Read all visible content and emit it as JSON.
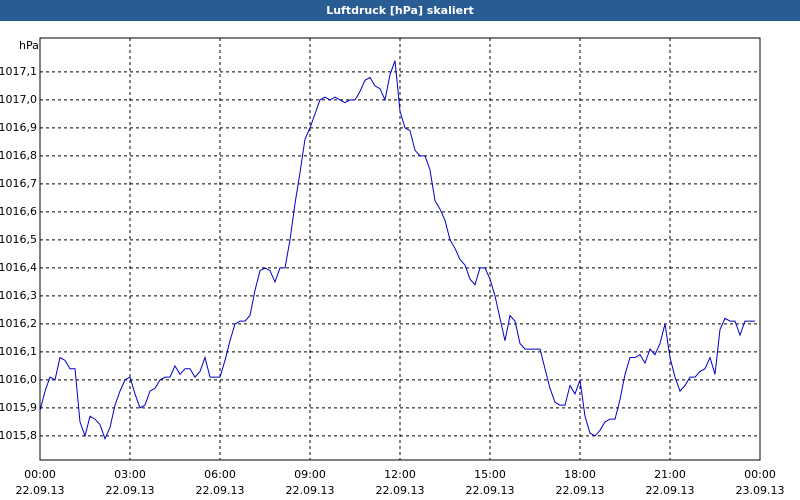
{
  "chart_data": {
    "type": "line",
    "title": "Luftdruck [hPa] skaliert",
    "y_label": "hPa",
    "x": [
      0,
      10,
      20,
      30,
      40,
      50,
      60,
      70,
      80,
      90,
      100,
      110,
      120,
      130,
      140,
      150,
      160,
      170,
      180,
      190,
      200,
      210,
      220,
      230,
      240,
      250,
      260,
      270,
      280,
      290,
      300,
      310,
      320,
      330,
      340,
      350,
      360,
      370,
      380,
      390,
      400,
      410,
      420,
      430,
      440,
      450,
      460,
      470,
      480,
      490,
      500,
      510,
      520,
      530,
      540,
      550,
      560,
      570,
      580,
      590,
      600,
      610,
      620,
      630,
      640,
      650,
      660,
      670,
      680,
      690,
      700,
      710,
      720,
      730,
      740,
      750,
      760,
      770,
      780,
      790,
      800,
      810,
      820,
      830,
      840,
      850,
      860,
      870,
      880,
      890,
      900,
      910,
      920,
      930,
      940,
      950,
      960,
      970,
      980,
      990,
      1000,
      1010,
      1020,
      1030,
      1040,
      1050,
      1060,
      1070,
      1080,
      1090,
      1100,
      1110,
      1120,
      1130,
      1140,
      1150,
      1160,
      1170,
      1180,
      1190,
      1200,
      1210,
      1220,
      1230,
      1240,
      1250,
      1260,
      1270,
      1280,
      1290,
      1300,
      1310,
      1320,
      1330,
      1340,
      1350,
      1360,
      1370,
      1380,
      1390,
      1400,
      1410,
      1420,
      1430
    ],
    "series": [
      {
        "name": "Luftdruck",
        "color": "#0000c8",
        "values": [
          1015.89,
          1015.96,
          1016.01,
          1016.0,
          1016.08,
          1016.07,
          1016.04,
          1016.04,
          1015.85,
          1015.8,
          1015.87,
          1015.86,
          1015.84,
          1015.79,
          1015.83,
          1015.91,
          1015.96,
          1016.0,
          1016.01,
          1015.95,
          1015.9,
          1015.91,
          1015.96,
          1015.97,
          1016.0,
          1016.01,
          1016.01,
          1016.05,
          1016.02,
          1016.04,
          1016.04,
          1016.01,
          1016.03,
          1016.08,
          1016.01,
          1016.01,
          1016.01,
          1016.07,
          1016.14,
          1016.2,
          1016.21,
          1016.21,
          1016.23,
          1016.32,
          1016.39,
          1016.4,
          1016.39,
          1016.35,
          1016.4,
          1016.4,
          1016.5,
          1016.63,
          1016.74,
          1016.86,
          1016.9,
          1016.95,
          1017.0,
          1017.01,
          1017.0,
          1017.01,
          1017.0,
          1016.99,
          1017.0,
          1017.0,
          1017.03,
          1017.07,
          1017.08,
          1017.05,
          1017.04,
          1017.0,
          1017.09,
          1017.14,
          1016.96,
          1016.9,
          1016.89,
          1016.82,
          1016.8,
          1016.8,
          1016.75,
          1016.64,
          1016.61,
          1016.57,
          1016.5,
          1016.47,
          1016.43,
          1016.41,
          1016.36,
          1016.34,
          1016.4,
          1016.4,
          1016.36,
          1016.3,
          1016.22,
          1016.14,
          1016.23,
          1016.21,
          1016.13,
          1016.11,
          1016.11,
          1016.11,
          1016.11,
          1016.04,
          1015.97,
          1015.92,
          1015.91,
          1015.91,
          1015.98,
          1015.95,
          1016.0,
          1015.87,
          1015.81,
          1015.8,
          1015.82,
          1015.85,
          1015.86,
          1015.86,
          1015.93,
          1016.02,
          1016.08,
          1016.08,
          1016.09,
          1016.06,
          1016.11,
          1016.09,
          1016.13,
          1016.2,
          1016.08,
          1016.01,
          1015.96,
          1015.98,
          1016.01,
          1016.01,
          1016.03,
          1016.04,
          1016.08,
          1016.02,
          1016.18,
          1016.22,
          1016.21,
          1016.21,
          1016.16,
          1016.21,
          1016.21,
          1016.21
        ]
      }
    ],
    "xlim": [
      0,
      1440
    ],
    "xticks": [
      {
        "value": 0,
        "label": "00:00"
      },
      {
        "value": 180,
        "label": "03:00"
      },
      {
        "value": 360,
        "label": "06:00"
      },
      {
        "value": 540,
        "label": "09:00"
      },
      {
        "value": 720,
        "label": "12:00"
      },
      {
        "value": 900,
        "label": "15:00"
      },
      {
        "value": 1080,
        "label": "18:00"
      },
      {
        "value": 1260,
        "label": "21:00"
      },
      {
        "value": 1440,
        "label": "00:00"
      }
    ],
    "xtick_dates": [
      "22.09.13",
      "22.09.13",
      "22.09.13",
      "22.09.13",
      "22.09.13",
      "22.09.13",
      "22.09.13",
      "22.09.13",
      "23.09.13"
    ],
    "ylim": [
      1015.714,
      1017.221
    ],
    "yticks": [
      {
        "value": 1015.8,
        "label": "1015,8"
      },
      {
        "value": 1015.9,
        "label": "1015,9"
      },
      {
        "value": 1016.0,
        "label": "1016,0"
      },
      {
        "value": 1016.1,
        "label": "1016,1"
      },
      {
        "value": 1016.2,
        "label": "1016,2"
      },
      {
        "value": 1016.3,
        "label": "1016,3"
      },
      {
        "value": 1016.4,
        "label": "1016,4"
      },
      {
        "value": 1016.5,
        "label": "1016,5"
      },
      {
        "value": 1016.6,
        "label": "1016,6"
      },
      {
        "value": 1016.7,
        "label": "1016,7"
      },
      {
        "value": 1016.8,
        "label": "1016,8"
      },
      {
        "value": 1016.9,
        "label": "1016,9"
      },
      {
        "value": 1017.0,
        "label": "1017,0"
      },
      {
        "value": 1017.1,
        "label": "1017,1"
      }
    ],
    "grid": true
  }
}
